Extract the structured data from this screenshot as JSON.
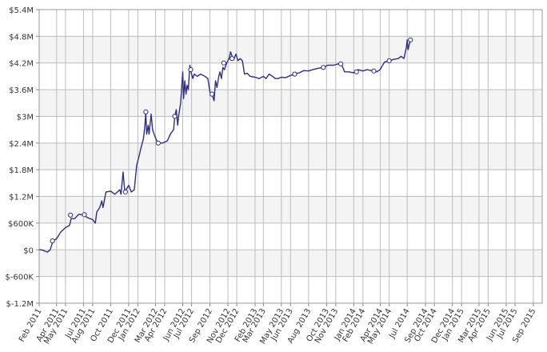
{
  "colors": {
    "line": "#2e2e84",
    "band": "#f4f4f4",
    "grid": "#bdbdbd",
    "plot_border": "#999999",
    "marker_fill": "#ffffff"
  },
  "chart_data": {
    "type": "line",
    "grid": true,
    "legend": "none",
    "ylim": [
      -1.2,
      5.4
    ],
    "y_unit": "millions of dollars",
    "y_ticks": [
      {
        "value": 5.4,
        "label": "$5.4M"
      },
      {
        "value": 4.8,
        "label": "$4.8M"
      },
      {
        "value": 4.2,
        "label": "$4.2M"
      },
      {
        "value": 3.6,
        "label": "$3.6M"
      },
      {
        "value": 3.0,
        "label": "$3M"
      },
      {
        "value": 2.4,
        "label": "$2.4M"
      },
      {
        "value": 1.8,
        "label": "$1.8M"
      },
      {
        "value": 1.2,
        "label": "$1.2M"
      },
      {
        "value": 0.6,
        "label": "$600K"
      },
      {
        "value": 0.0,
        "label": "$0"
      },
      {
        "value": -0.6,
        "label": "$-600K"
      },
      {
        "value": -1.2,
        "label": "$-1.2M"
      }
    ],
    "x_range": [
      "2011-02",
      "2015-10"
    ],
    "x_ticks": [
      "2011-02",
      "2011-04",
      "2011-05",
      "2011-07",
      "2011-08",
      "2011-10",
      "2011-12",
      "2012-01",
      "2012-03",
      "2012-04",
      "2012-06",
      "2012-07",
      "2012-09",
      "2012-11",
      "2012-12",
      "2013-02",
      "2013-03",
      "2013-05",
      "2013-06",
      "2013-08",
      "2013-10",
      "2013-11",
      "2014-01",
      "2014-02",
      "2014-04",
      "2014-05",
      "2014-07",
      "2014-09",
      "2014-10",
      "2014-12",
      "2015-01",
      "2015-03",
      "2015-04",
      "2015-06",
      "2015-07",
      "2015-09"
    ],
    "x_tick_labels": [
      "Feb 2011",
      "Apr 2011",
      "May 2011",
      "Jul 2011",
      "Aug 2011",
      "Oct 2011",
      "Dec 2011",
      "Jan 2012",
      "Mar 2012",
      "Apr 2012",
      "Jun 2012",
      "Jul 2012",
      "Sep 2012",
      "Nov 2012",
      "Dec 2012",
      "Feb 2013",
      "Mar 2013",
      "May 2013",
      "Jun 2013",
      "Aug 2013",
      "Oct 2013",
      "Nov 2013",
      "Jan 2014",
      "Feb 2014",
      "Apr 2014",
      "May 2014",
      "Jul 2014",
      "Sep 2014",
      "Oct 2014",
      "Dec 2014",
      "Jan 2015",
      "Mar 2015",
      "Apr 2015",
      "Jun 2015",
      "Jul 2015",
      "Sep 2015"
    ],
    "series": [
      {
        "points": [
          [
            "2011-02-01",
            0.0
          ],
          [
            "2011-02-10",
            0.0
          ],
          [
            "2011-02-20",
            -0.03
          ],
          [
            "2011-03-01",
            -0.05
          ],
          [
            "2011-03-10",
            0.0
          ],
          [
            "2011-03-20",
            0.2
          ],
          [
            "2011-04-01",
            0.25
          ],
          [
            "2011-04-15",
            0.4
          ],
          [
            "2011-05-01",
            0.5
          ],
          [
            "2011-05-15",
            0.55
          ],
          [
            "2011-05-20",
            0.7
          ],
          [
            "2011-06-01",
            0.7
          ],
          [
            "2011-06-15",
            0.8
          ],
          [
            "2011-07-01",
            0.78
          ],
          [
            "2011-07-15",
            0.72
          ],
          [
            "2011-08-01",
            0.68
          ],
          [
            "2011-08-10",
            0.6
          ],
          [
            "2011-08-15",
            0.85
          ],
          [
            "2011-08-25",
            0.95
          ],
          [
            "2011-09-01",
            1.1
          ],
          [
            "2011-09-05",
            0.95
          ],
          [
            "2011-09-15",
            1.3
          ],
          [
            "2011-10-01",
            1.32
          ],
          [
            "2011-10-15",
            1.25
          ],
          [
            "2011-11-01",
            1.35
          ],
          [
            "2011-11-05",
            1.25
          ],
          [
            "2011-11-12",
            1.75
          ],
          [
            "2011-11-18",
            1.3
          ],
          [
            "2011-12-01",
            1.45
          ],
          [
            "2011-12-10",
            1.3
          ],
          [
            "2011-12-20",
            1.35
          ],
          [
            "2011-12-28",
            1.9
          ],
          [
            "2012-01-05",
            2.1
          ],
          [
            "2012-01-12",
            2.3
          ],
          [
            "2012-01-20",
            2.5
          ],
          [
            "2012-01-25",
            2.8
          ],
          [
            "2012-01-28",
            3.1
          ],
          [
            "2012-01-31",
            2.6
          ],
          [
            "2012-02-05",
            2.8
          ],
          [
            "2012-02-08",
            2.6
          ],
          [
            "2012-02-15",
            3.05
          ],
          [
            "2012-02-20",
            2.7
          ],
          [
            "2012-02-25",
            2.6
          ],
          [
            "2012-03-05",
            2.45
          ],
          [
            "2012-03-15",
            2.4
          ],
          [
            "2012-03-25",
            2.4
          ],
          [
            "2012-04-10",
            2.45
          ],
          [
            "2012-04-20",
            2.6
          ],
          [
            "2012-05-01",
            2.7
          ],
          [
            "2012-05-05",
            3.0
          ],
          [
            "2012-05-10",
            3.15
          ],
          [
            "2012-05-15",
            2.8
          ],
          [
            "2012-05-18",
            3.0
          ],
          [
            "2012-05-25",
            3.3
          ],
          [
            "2012-05-28",
            3.6
          ],
          [
            "2012-06-01",
            4.0
          ],
          [
            "2012-06-04",
            3.4
          ],
          [
            "2012-06-08",
            3.8
          ],
          [
            "2012-06-12",
            3.5
          ],
          [
            "2012-06-16",
            3.7
          ],
          [
            "2012-06-20",
            3.6
          ],
          [
            "2012-06-25",
            4.15
          ],
          [
            "2012-07-01",
            3.95
          ],
          [
            "2012-07-05",
            3.85
          ],
          [
            "2012-07-10",
            3.95
          ],
          [
            "2012-07-20",
            3.9
          ],
          [
            "2012-08-01",
            3.95
          ],
          [
            "2012-08-15",
            3.9
          ],
          [
            "2012-08-25",
            3.85
          ],
          [
            "2012-09-01",
            3.55
          ],
          [
            "2012-09-08",
            3.5
          ],
          [
            "2012-09-15",
            3.35
          ],
          [
            "2012-09-20",
            3.8
          ],
          [
            "2012-09-25",
            3.65
          ],
          [
            "2012-10-01",
            3.9
          ],
          [
            "2012-10-05",
            4.0
          ],
          [
            "2012-10-10",
            3.85
          ],
          [
            "2012-10-15",
            4.1
          ],
          [
            "2012-10-20",
            4.05
          ],
          [
            "2012-10-28",
            4.2
          ],
          [
            "2012-11-05",
            4.3
          ],
          [
            "2012-11-10",
            4.45
          ],
          [
            "2012-11-15",
            4.35
          ],
          [
            "2012-11-22",
            4.3
          ],
          [
            "2012-11-28",
            4.4
          ],
          [
            "2012-12-05",
            4.25
          ],
          [
            "2012-12-12",
            4.3
          ],
          [
            "2012-12-20",
            4.25
          ],
          [
            "2012-12-27",
            3.95
          ],
          [
            "2013-01-05",
            3.97
          ],
          [
            "2013-01-15",
            3.9
          ],
          [
            "2013-02-01",
            3.88
          ],
          [
            "2013-02-15",
            3.85
          ],
          [
            "2013-03-01",
            3.9
          ],
          [
            "2013-03-10",
            3.85
          ],
          [
            "2013-03-20",
            3.95
          ],
          [
            "2013-04-01",
            3.9
          ],
          [
            "2013-04-10",
            3.85
          ],
          [
            "2013-04-20",
            3.85
          ],
          [
            "2013-05-01",
            3.88
          ],
          [
            "2013-05-15",
            3.87
          ],
          [
            "2013-06-01",
            3.92
          ],
          [
            "2013-06-15",
            3.95
          ],
          [
            "2013-07-01",
            3.98
          ],
          [
            "2013-07-15",
            4.03
          ],
          [
            "2013-08-01",
            4.02
          ],
          [
            "2013-08-15",
            4.05
          ],
          [
            "2013-09-01",
            4.08
          ],
          [
            "2013-09-20",
            4.1
          ],
          [
            "2013-10-05",
            4.15
          ],
          [
            "2013-10-25",
            4.15
          ],
          [
            "2013-11-10",
            4.18
          ],
          [
            "2013-11-20",
            4.18
          ],
          [
            "2013-12-01",
            4.0
          ],
          [
            "2013-12-15",
            4.0
          ],
          [
            "2014-01-01",
            3.98
          ],
          [
            "2014-01-15",
            4.05
          ],
          [
            "2014-02-01",
            4.02
          ],
          [
            "2014-02-15",
            4.05
          ],
          [
            "2014-03-01",
            4.03
          ],
          [
            "2014-03-10",
            4.05
          ],
          [
            "2014-03-20",
            4.0
          ],
          [
            "2014-03-31",
            4.05
          ],
          [
            "2014-04-15",
            4.22
          ],
          [
            "2014-05-01",
            4.25
          ],
          [
            "2014-05-15",
            4.28
          ],
          [
            "2014-06-01",
            4.3
          ],
          [
            "2014-06-10",
            4.35
          ],
          [
            "2014-06-20",
            4.3
          ],
          [
            "2014-06-28",
            4.55
          ],
          [
            "2014-07-01",
            4.72
          ],
          [
            "2014-07-04",
            4.5
          ],
          [
            "2014-07-08",
            4.62
          ],
          [
            "2014-07-12",
            4.72
          ]
        ],
        "markers": [
          [
            "2011-03-18",
            0.2
          ],
          [
            "2011-05-18",
            0.78
          ],
          [
            "2011-07-04",
            0.79
          ],
          [
            "2011-11-20",
            1.3
          ],
          [
            "2012-01-28",
            3.1
          ],
          [
            "2012-03-10",
            2.4
          ],
          [
            "2012-05-05",
            3.0
          ],
          [
            "2012-06-28",
            4.05
          ],
          [
            "2012-09-08",
            3.5
          ],
          [
            "2012-10-18",
            4.2
          ],
          [
            "2012-11-15",
            4.3
          ],
          [
            "2013-06-15",
            3.95
          ],
          [
            "2013-09-20",
            4.1
          ],
          [
            "2013-11-18",
            4.18
          ],
          [
            "2014-01-10",
            4.0
          ],
          [
            "2014-03-10",
            4.02
          ],
          [
            "2014-05-01",
            4.25
          ],
          [
            "2014-07-12",
            4.72
          ]
        ]
      }
    ]
  }
}
